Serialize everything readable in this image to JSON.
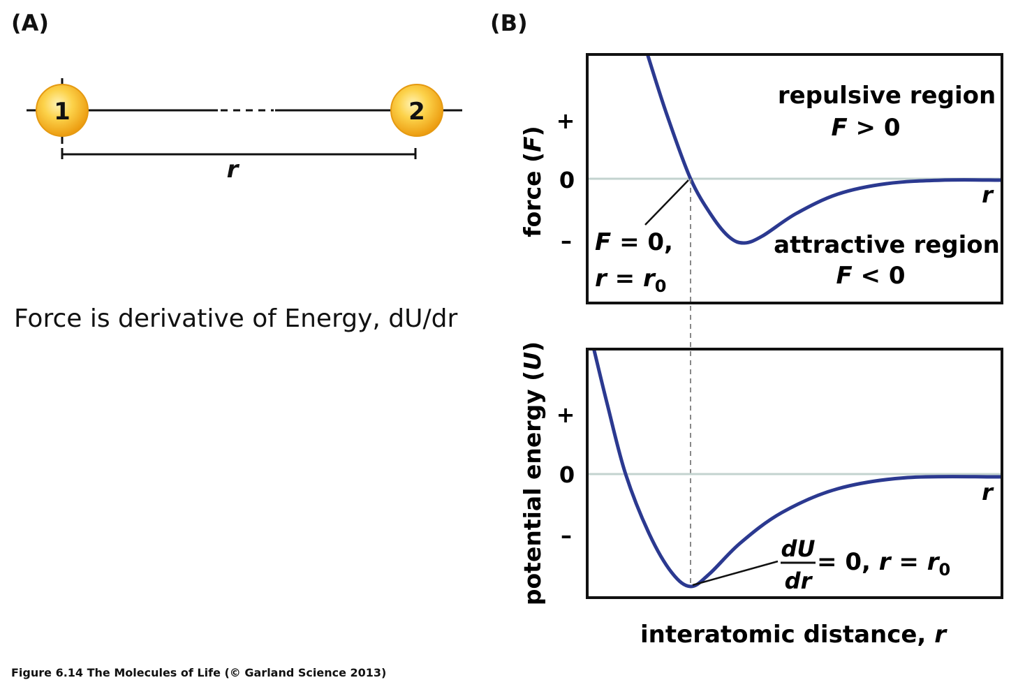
{
  "panel_a": {
    "label": "(A)",
    "atom1": "1",
    "atom2": "2",
    "distance_symbol": "r"
  },
  "caption": "Force is derivative of Energy, dU/dr",
  "panel_b": {
    "label": "(B)",
    "force_plot": {
      "ylabel_text": "force (",
      "ylabel_symbol": "F",
      "ylabel_close": ")",
      "tick_plus": "+",
      "tick_zero": "0",
      "tick_minus": "–",
      "axis_symbol": "r",
      "repulsive_title": "repulsive region",
      "repulsive_cond_symbol": "F",
      "repulsive_cond_rel": " > 0",
      "attractive_title": "attractive region",
      "attractive_cond_symbol": "F",
      "attractive_cond_rel": " < 0",
      "annotation_line1_symbol": "F",
      "annotation_line1_rest": " = 0,",
      "annotation_line2_symbol": "r",
      "annotation_line2_eq": " = ",
      "annotation_line2_r": "r",
      "annotation_line2_sub": "0"
    },
    "energy_plot": {
      "ylabel_text": "potential energy (",
      "ylabel_symbol": "U",
      "ylabel_close": ")",
      "tick_plus": "+",
      "tick_zero": "0",
      "tick_minus": "–",
      "axis_symbol": "r",
      "frac_num": "dU",
      "frac_den": "dr",
      "annotation_rest": " = 0, ",
      "annotation_r": "r",
      "annotation_eq": " = ",
      "annotation_r0": "r",
      "annotation_sub": "0"
    },
    "xlabel_text": "interatomic distance, ",
    "xlabel_symbol": "r"
  },
  "footer": "Figure 6.14  The Molecules of Life (© Garland Science 2013)",
  "colors": {
    "curve": "#2b3990",
    "zero_line": "#c3d3cf",
    "atom_fill": "#f5b31c",
    "atom_highlight": "#fde79a",
    "frame": "#111111",
    "dashed": "#888888"
  }
}
